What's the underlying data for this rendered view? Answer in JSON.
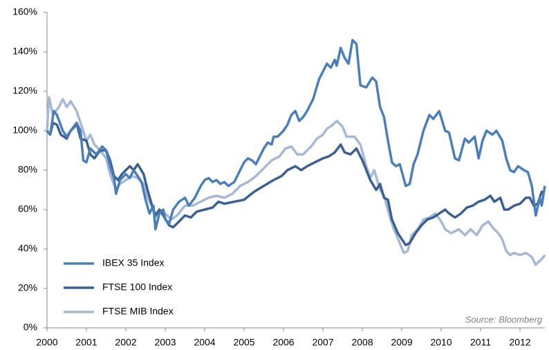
{
  "chart_data": {
    "type": "line",
    "source": "Source: Bloomberg",
    "legend": "lower left",
    "grid": false,
    "xlim": [
      2000,
      2012.63
    ],
    "xticks": [
      2000,
      2001,
      2002,
      2003,
      2004,
      2005,
      2006,
      2007,
      2008,
      2009,
      2010,
      2011,
      2012
    ],
    "ylim": [
      0,
      160
    ],
    "yticks": [
      {
        "value": 0,
        "label": "0%"
      },
      {
        "value": 20,
        "label": "20%"
      },
      {
        "value": 40,
        "label": "40%"
      },
      {
        "value": 60,
        "label": "60%"
      },
      {
        "value": 80,
        "label": "80%"
      },
      {
        "value": 100,
        "label": "100%"
      },
      {
        "value": 120,
        "label": "120%"
      },
      {
        "value": 140,
        "label": "140%"
      },
      {
        "value": 160,
        "label": "160%"
      }
    ],
    "series": [
      {
        "name": "IBEX 35 Index",
        "color": "#4a7ebb",
        "x": [
          2000.0,
          2000.08,
          2000.17,
          2000.25,
          2000.4,
          2000.5,
          2000.6,
          2000.75,
          2000.85,
          2000.92,
          2001.0,
          2001.1,
          2001.25,
          2001.4,
          2001.5,
          2001.6,
          2001.7,
          2001.75,
          2001.85,
          2002.0,
          2002.1,
          2002.2,
          2002.3,
          2002.4,
          2002.5,
          2002.6,
          2002.7,
          2002.75,
          2002.85,
          2002.95,
          2003.0,
          2003.1,
          2003.2,
          2003.35,
          2003.5,
          2003.6,
          2003.75,
          2003.9,
          2004.0,
          2004.1,
          2004.2,
          2004.3,
          2004.4,
          2004.5,
          2004.6,
          2004.75,
          2004.9,
          2005.0,
          2005.1,
          2005.2,
          2005.3,
          2005.4,
          2005.5,
          2005.6,
          2005.7,
          2005.75,
          2005.85,
          2006.0,
          2006.1,
          2006.2,
          2006.3,
          2006.4,
          2006.5,
          2006.6,
          2006.75,
          2006.9,
          2007.0,
          2007.1,
          2007.2,
          2007.3,
          2007.35,
          2007.45,
          2007.55,
          2007.65,
          2007.75,
          2007.85,
          2007.95,
          2008.1,
          2008.25,
          2008.35,
          2008.45,
          2008.55,
          2008.65,
          2008.75,
          2008.85,
          2008.95,
          2009.1,
          2009.2,
          2009.3,
          2009.4,
          2009.55,
          2009.7,
          2009.8,
          2009.95,
          2010.1,
          2010.2,
          2010.35,
          2010.45,
          2010.6,
          2010.7,
          2010.85,
          2010.95,
          2011.05,
          2011.15,
          2011.3,
          2011.4,
          2011.55,
          2011.65,
          2011.75,
          2011.85,
          2011.95,
          2012.1,
          2012.2,
          2012.3,
          2012.4,
          2012.5,
          2012.55,
          2012.63
        ],
        "values": [
          100,
          98,
          110,
          108,
          100,
          97,
          100,
          104,
          100,
          85,
          84,
          91,
          88,
          92,
          90,
          82,
          76,
          68,
          75,
          78,
          76,
          80,
          77,
          74,
          65,
          58,
          62,
          50,
          58,
          60,
          55,
          53,
          60,
          64,
          66,
          62,
          66,
          72,
          75,
          76,
          74,
          75,
          73,
          74,
          72,
          74,
          80,
          84,
          86,
          85,
          83,
          87,
          91,
          94,
          93,
          97,
          97,
          100,
          103,
          108,
          110,
          105,
          107,
          110,
          116,
          126,
          130,
          134,
          132,
          136,
          133,
          142,
          137,
          134,
          146,
          144,
          123,
          122,
          127,
          125,
          112,
          107,
          95,
          84,
          82,
          83,
          72,
          73,
          83,
          88,
          100,
          108,
          106,
          110,
          100,
          99,
          86,
          85,
          96,
          94,
          97,
          86,
          95,
          100,
          98,
          100,
          95,
          86,
          80,
          79,
          82,
          80,
          79,
          72,
          57,
          66,
          62,
          72
        ]
      },
      {
        "name": "FTSE 100 Index",
        "color": "#3a5f95",
        "x": [
          2000,
          2000.08,
          2000.15,
          2000.25,
          2000.35,
          2000.5,
          2000.6,
          2000.7,
          2000.75,
          2000.85,
          2001.0,
          2001.1,
          2001.2,
          2001.35,
          2001.5,
          2001.6,
          2001.7,
          2001.8,
          2001.9,
          2002.0,
          2002.1,
          2002.2,
          2002.3,
          2002.45,
          2002.55,
          2002.65,
          2002.75,
          2002.85,
          2002.95,
          2003.1,
          2003.2,
          2003.35,
          2003.5,
          2003.65,
          2003.8,
          2004.0,
          2004.2,
          2004.35,
          2004.5,
          2004.75,
          2005.0,
          2005.25,
          2005.5,
          2005.75,
          2005.95,
          2006.1,
          2006.3,
          2006.45,
          2006.6,
          2006.8,
          2007.0,
          2007.15,
          2007.3,
          2007.45,
          2007.55,
          2007.7,
          2007.85,
          2008.0,
          2008.1,
          2008.2,
          2008.35,
          2008.45,
          2008.55,
          2008.65,
          2008.75,
          2008.9,
          2009.0,
          2009.1,
          2009.2,
          2009.35,
          2009.5,
          2009.65,
          2009.8,
          2009.95,
          2010.1,
          2010.2,
          2010.35,
          2010.5,
          2010.65,
          2010.8,
          2010.95,
          2011.1,
          2011.25,
          2011.35,
          2011.5,
          2011.6,
          2011.7,
          2011.85,
          2012.0,
          2012.15,
          2012.25,
          2012.35,
          2012.45,
          2012.55,
          2012.63
        ],
        "values": [
          100,
          98,
          104,
          103,
          98,
          96,
          100,
          102,
          104,
          96,
          95,
          88,
          86,
          90,
          90,
          85,
          77,
          75,
          78,
          80,
          82,
          80,
          83,
          78,
          70,
          63,
          57,
          60,
          57,
          52,
          51,
          54,
          57,
          56,
          59,
          60,
          61,
          64,
          63,
          64,
          65,
          69,
          72,
          75,
          77,
          80,
          82,
          80,
          82,
          84,
          86,
          87,
          89,
          93,
          89,
          88,
          91,
          85,
          80,
          75,
          70,
          73,
          66,
          65,
          55,
          48,
          45,
          42,
          43,
          48,
          52,
          55,
          56,
          58,
          60,
          58,
          56,
          58,
          61,
          62,
          64,
          65,
          67,
          64,
          66,
          60,
          60,
          62,
          63,
          66,
          66,
          62,
          63,
          69,
          69
        ]
      },
      {
        "name": "FTSE MIB Index",
        "color": "#a6b8d8",
        "x": [
          2000,
          2000.05,
          2000.15,
          2000.3,
          2000.4,
          2000.5,
          2000.6,
          2000.75,
          2000.85,
          2001.0,
          2001.1,
          2001.2,
          2001.35,
          2001.5,
          2001.6,
          2001.75,
          2001.85,
          2002.0,
          2002.15,
          2002.3,
          2002.45,
          2002.55,
          2002.65,
          2002.75,
          2002.85,
          2003.0,
          2003.15,
          2003.3,
          2003.5,
          2003.7,
          2003.9,
          2004.1,
          2004.3,
          2004.5,
          2004.7,
          2004.9,
          2005.1,
          2005.3,
          2005.5,
          2005.7,
          2005.9,
          2006.05,
          2006.2,
          2006.35,
          2006.5,
          2006.7,
          2006.85,
          2007.0,
          2007.1,
          2007.25,
          2007.35,
          2007.5,
          2007.6,
          2007.8,
          2007.95,
          2008.1,
          2008.2,
          2008.3,
          2008.45,
          2008.55,
          2008.7,
          2008.8,
          2008.95,
          2009.05,
          2009.15,
          2009.25,
          2009.4,
          2009.55,
          2009.7,
          2009.85,
          2010.0,
          2010.1,
          2010.25,
          2010.45,
          2010.6,
          2010.75,
          2010.9,
          2011.05,
          2011.2,
          2011.3,
          2011.45,
          2011.55,
          2011.65,
          2011.75,
          2011.85,
          2012.0,
          2012.15,
          2012.3,
          2012.4,
          2012.5,
          2012.6,
          2012.63
        ],
        "values": [
          100,
          117,
          108,
          112,
          116,
          112,
          115,
          110,
          104,
          95,
          98,
          93,
          90,
          86,
          78,
          70,
          73,
          75,
          77,
          76,
          73,
          66,
          62,
          56,
          60,
          58,
          55,
          57,
          62,
          62,
          64,
          66,
          67,
          66,
          68,
          72,
          74,
          77,
          81,
          85,
          87,
          91,
          92,
          88,
          88,
          92,
          96,
          98,
          101,
          103,
          105,
          102,
          97,
          97,
          93,
          82,
          76,
          80,
          70,
          67,
          56,
          50,
          43,
          38,
          39,
          47,
          50,
          55,
          56,
          58,
          54,
          50,
          48,
          50,
          47,
          50,
          47,
          52,
          54,
          51,
          48,
          45,
          39,
          37,
          38,
          37,
          38,
          36,
          32,
          34,
          36,
          37
        ]
      }
    ]
  }
}
